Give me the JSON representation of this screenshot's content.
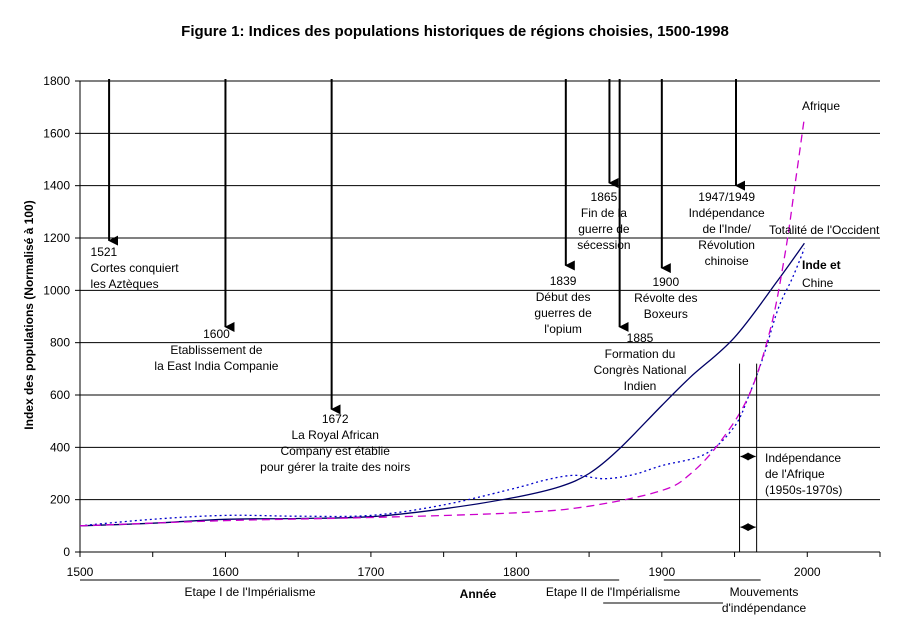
{
  "chart_data": {
    "type": "line",
    "title": "Figure 1: Indices des populations historiques de régions choisies, 1500-1998",
    "xlabel": "Année",
    "ylabel": "Index des populations (Normalisé à 100)",
    "xlim": [
      1500,
      2050
    ],
    "ylim": [
      0,
      1800
    ],
    "x_ticks": [
      1500,
      1600,
      1700,
      1800,
      1900,
      2000
    ],
    "y_ticks": [
      0,
      200,
      400,
      600,
      800,
      1000,
      1200,
      1400,
      1600,
      1800
    ],
    "grid": "horizontal",
    "series": [
      {
        "name": "Totalité de l'Occident",
        "color": "#000066",
        "style": "solid",
        "points": [
          [
            1500,
            100
          ],
          [
            1550,
            110
          ],
          [
            1600,
            125
          ],
          [
            1650,
            128
          ],
          [
            1700,
            135
          ],
          [
            1750,
            165
          ],
          [
            1800,
            210
          ],
          [
            1830,
            250
          ],
          [
            1850,
            300
          ],
          [
            1870,
            390
          ],
          [
            1900,
            560
          ],
          [
            1920,
            670
          ],
          [
            1950,
            820
          ],
          [
            1980,
            1040
          ],
          [
            1998,
            1180
          ]
        ]
      },
      {
        "name": "Inde et Chine",
        "color": "#0000cc",
        "style": "dotted",
        "points": [
          [
            1500,
            100
          ],
          [
            1550,
            125
          ],
          [
            1600,
            140
          ],
          [
            1650,
            137
          ],
          [
            1700,
            140
          ],
          [
            1750,
            180
          ],
          [
            1800,
            245
          ],
          [
            1820,
            275
          ],
          [
            1840,
            293
          ],
          [
            1860,
            280
          ],
          [
            1880,
            295
          ],
          [
            1900,
            330
          ],
          [
            1930,
            375
          ],
          [
            1950,
            480
          ],
          [
            1960,
            600
          ],
          [
            1970,
            750
          ],
          [
            1980,
            930
          ],
          [
            1990,
            1050
          ],
          [
            1998,
            1160
          ]
        ]
      },
      {
        "name": "Afrique",
        "color": "#cc00cc",
        "style": "dashed",
        "points": [
          [
            1500,
            100
          ],
          [
            1600,
            120
          ],
          [
            1700,
            132
          ],
          [
            1800,
            150
          ],
          [
            1850,
            175
          ],
          [
            1900,
            235
          ],
          [
            1920,
            300
          ],
          [
            1940,
            420
          ],
          [
            1960,
            600
          ],
          [
            1975,
            860
          ],
          [
            1985,
            1150
          ],
          [
            1992,
            1420
          ],
          [
            1998,
            1660
          ]
        ]
      }
    ],
    "series_labels": [
      {
        "text": "Afrique",
        "x": 1998,
        "y": 1660
      },
      {
        "text": "Totalité de l'Occident",
        "x": 1998,
        "y": 1180
      },
      {
        "text": "Inde et",
        "x": 1998,
        "y": 1060
      },
      {
        "text": "Chine",
        "x": 1998,
        "y": 980
      }
    ],
    "events": [
      {
        "year": 1521,
        "lines": [
          "1521",
          "Cortes conquiert",
          "les Aztèques"
        ]
      },
      {
        "year": 1600,
        "lines": [
          "1600",
          "Etablissement de",
          "la East India Companie"
        ]
      },
      {
        "year": 1672,
        "lines": [
          "1672",
          "La Royal African",
          "Company est établie",
          "pour gérer la traite des noirs"
        ]
      },
      {
        "year": 1839,
        "lines": [
          "1839",
          "Début des",
          "guerres de",
          "l'opium"
        ]
      },
      {
        "year": 1865,
        "lines": [
          "1865",
          "Fin de la",
          "guerre de",
          "sécession"
        ]
      },
      {
        "year": 1885,
        "lines": [
          "1885",
          "Formation du",
          "Congrès National",
          "Indien"
        ]
      },
      {
        "year": 1900,
        "lines": [
          "1900",
          "Révolte des",
          "Boxeurs"
        ]
      },
      {
        "year": 1948,
        "lines": [
          "1947/1949",
          "Indépendance",
          "de l'Inde/",
          "Révolution",
          "chinoise"
        ]
      }
    ],
    "independence_span": {
      "from": 1950,
      "to": 1970,
      "lines": [
        "Indépendance",
        "de l'Afrique",
        "(1950s-1970s)"
      ]
    },
    "stages": [
      {
        "label": "Etape I de l'Impérialisme",
        "from": 1500,
        "to": 1870
      },
      {
        "label": "Etape II de l'Impérialisme",
        "from": 1870,
        "to": 1960
      },
      {
        "label": "Mouvements",
        "label2": "d'indépendance",
        "from": 1900,
        "to": 1970
      }
    ]
  }
}
